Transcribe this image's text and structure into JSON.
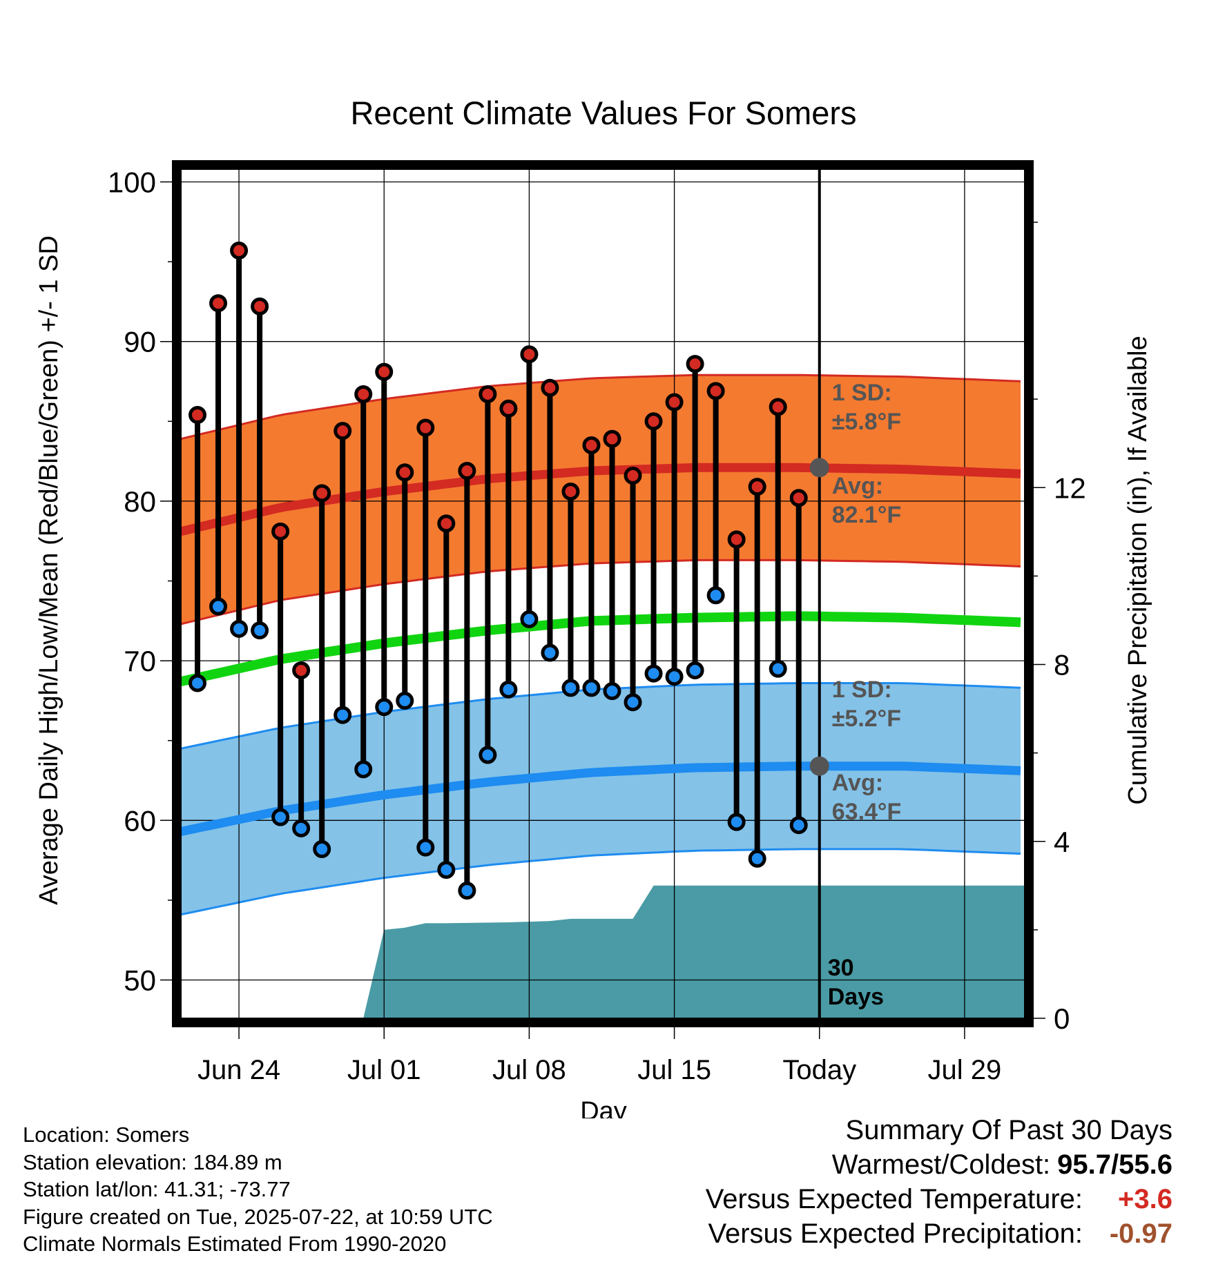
{
  "chart_data": {
    "type": "line",
    "title": "Recent Climate Values For Somers",
    "xlabel": "Day",
    "ylabel": "Average Daily High/Low/Mean (Red/Blue/Green) +/- 1 SD",
    "y2label": "Cumulative Precipitation (in), If Available",
    "ylim": [
      47.6,
      100.8
    ],
    "y2lim": [
      0,
      19.2
    ],
    "yticks": [
      50,
      60,
      70,
      80,
      90,
      100
    ],
    "y2ticks": [
      0,
      4,
      8,
      12
    ],
    "x_start_date": "2025-06-21",
    "x_range_days": [
      0.2,
      40.9
    ],
    "xticks": [
      {
        "day": 3,
        "label": "Jun 24"
      },
      {
        "day": 10,
        "label": "Jul 01"
      },
      {
        "day": 17,
        "label": "Jul 08"
      },
      {
        "day": 24,
        "label": "Jul 15"
      },
      {
        "day": 31,
        "label": "Today"
      },
      {
        "day": 38,
        "label": "Jul 29"
      }
    ],
    "today_day": 31,
    "daily_high": [
      85.4,
      92.4,
      95.7,
      92.2,
      78.1,
      69.4,
      80.5,
      84.4,
      86.7,
      88.1,
      81.8,
      84.6,
      78.6,
      81.9,
      86.7,
      85.8,
      89.2,
      87.1,
      80.6,
      83.5,
      83.9,
      81.6,
      85.0,
      86.2,
      88.6,
      86.9,
      77.6,
      80.9,
      85.9,
      80.2
    ],
    "daily_low": [
      68.6,
      73.4,
      72.0,
      71.9,
      60.2,
      59.5,
      58.2,
      66.6,
      63.2,
      67.1,
      67.5,
      58.3,
      56.9,
      55.6,
      64.1,
      68.2,
      72.6,
      70.5,
      68.3,
      68.3,
      68.1,
      67.4,
      69.2,
      69.0,
      69.4,
      74.1,
      59.9,
      57.6,
      69.5,
      59.7
    ],
    "normal_high": {
      "x": [
        0.2,
        5,
        10,
        15,
        20,
        25,
        30,
        35,
        40.9
      ],
      "values": [
        78.1,
        79.6,
        80.6,
        81.4,
        81.9,
        82.1,
        82.1,
        82.0,
        81.7
      ],
      "sd": 5.8,
      "avg_today": 82.1
    },
    "normal_low": {
      "x": [
        0.2,
        5,
        10,
        15,
        20,
        25,
        30,
        35,
        40.9
      ],
      "values": [
        59.3,
        60.6,
        61.6,
        62.4,
        63.0,
        63.3,
        63.4,
        63.4,
        63.1
      ],
      "sd": 5.2,
      "avg_today": 63.4
    },
    "normal_mean": {
      "x": [
        0.2,
        5,
        10,
        15,
        20,
        25,
        30,
        35,
        40.9
      ],
      "values": [
        68.7,
        70.1,
        71.1,
        71.9,
        72.5,
        72.7,
        72.8,
        72.7,
        72.4
      ]
    },
    "precip_cumulative": {
      "x": [
        9,
        10,
        11,
        12,
        13,
        16,
        18,
        19,
        21,
        22,
        23,
        40.9
      ],
      "values": [
        0,
        2.0,
        2.05,
        2.15,
        2.15,
        2.17,
        2.2,
        2.25,
        2.25,
        2.25,
        3.0,
        3.0
      ]
    },
    "annotations": {
      "high_sd_label": "1 SD:",
      "high_sd_value": "±5.8°F",
      "high_avg_label": "Avg:",
      "high_avg_value": "82.1°F",
      "low_sd_label": "1 SD:",
      "low_sd_value": "±5.2°F",
      "low_avg_label": "Avg:",
      "low_avg_value": "63.4°F",
      "window_label_1": "30",
      "window_label_2": "Days"
    },
    "colors": {
      "high_band": "#f47a30",
      "high_line": "#d32a22",
      "low_band": "#84c2e8",
      "low_line": "#1e8cf0",
      "mean_line": "#11d411",
      "precip": "#4a9ba5",
      "high_dot": "#d32a22",
      "low_dot": "#1e8cf0",
      "annotation": "#555555"
    }
  },
  "info": {
    "location": "Location: Somers",
    "elevation": "Station elevation: 184.89 m",
    "latlon": "Station lat/lon: 41.31; -73.77",
    "created": "Figure created on Tue, 2025-07-22, at 10:59 UTC",
    "normals": "Climate Normals Estimated From 1990-2020"
  },
  "summary": {
    "title": "Summary Of Past 30 Days",
    "warm_cold_label": "Warmest/Coldest:",
    "warm_cold_value": "95.7/55.6",
    "temp_label": "Versus Expected Temperature:",
    "temp_value": "+3.6",
    "temp_color": "#d32a22",
    "precip_label": "Versus Expected Precipitation:",
    "precip_value": "-0.97",
    "precip_color": "#a0522d"
  }
}
